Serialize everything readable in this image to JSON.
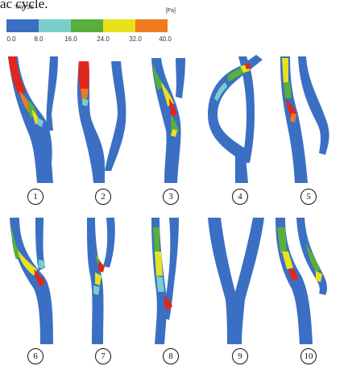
{
  "caption_fragment": "ac cycle.",
  "legend": {
    "title": "TAWSS",
    "unit": "[Pa]",
    "ticks": [
      "0.0",
      "8.0",
      "16.0",
      "24.0",
      "32.0",
      "40.0"
    ],
    "colors": [
      "#3a6fc4",
      "#79cfc9",
      "#5aae3c",
      "#e8e21c",
      "#f07a1e"
    ]
  },
  "panels": [
    {
      "label": "1"
    },
    {
      "label": "2"
    },
    {
      "label": "3"
    },
    {
      "label": "4"
    },
    {
      "label": "5"
    },
    {
      "label": "6"
    },
    {
      "label": "7"
    },
    {
      "label": "8"
    },
    {
      "label": "9"
    },
    {
      "label": "10"
    }
  ]
}
